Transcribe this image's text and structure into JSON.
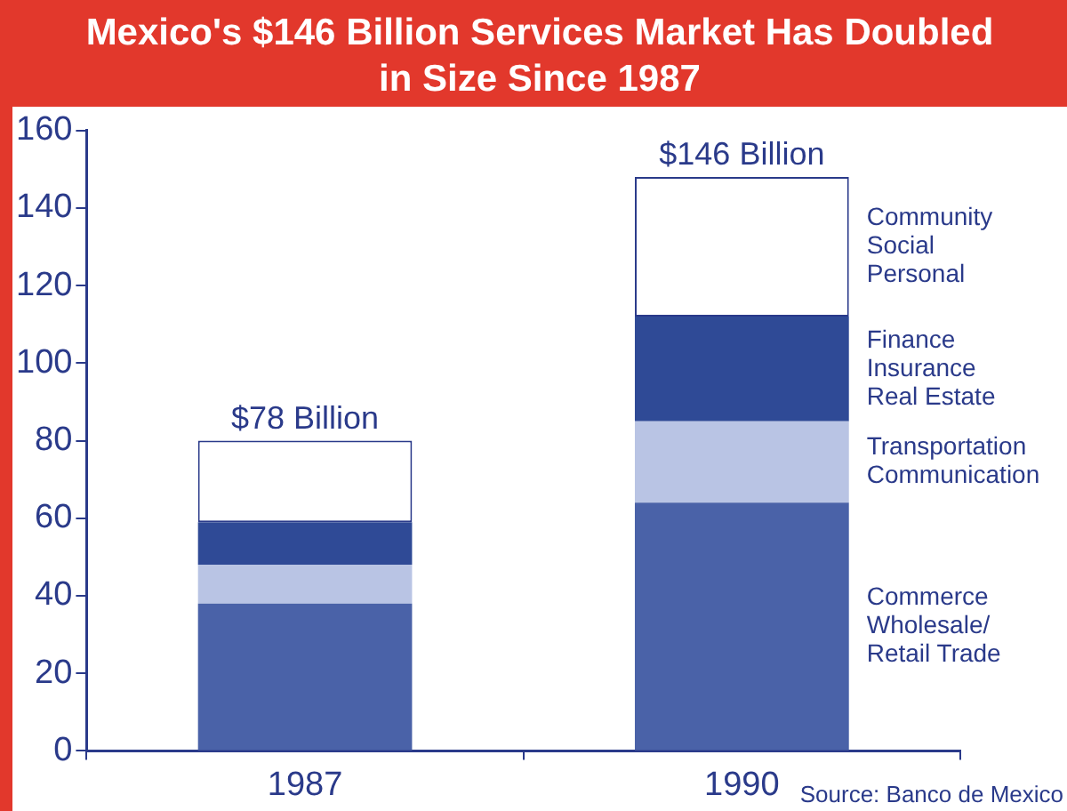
{
  "chart_data": {
    "type": "bar",
    "title": "Mexico's $146 Billion Services Market Has Doubled in Size Since 1987",
    "categories": [
      "1987",
      "1990"
    ],
    "stacked": true,
    "series": [
      {
        "name": "Commerce\nWholesale/\nRetail Trade",
        "color": "#4a62a8",
        "values": [
          38,
          64
        ]
      },
      {
        "name": "Transportation\nCommunication",
        "color": "#b9c4e4",
        "values": [
          10,
          21
        ]
      },
      {
        "name": "Finance\nInsurance\nReal Estate",
        "color": "#2f4a96",
        "values": [
          11,
          27
        ]
      },
      {
        "name": "Community\nSocial\nPersonal",
        "color": "#ffffff",
        "values": [
          21,
          36
        ]
      }
    ],
    "totals": [
      "$78 Billion",
      "$146 Billion"
    ],
    "ylim": [
      0,
      160
    ],
    "yticks": [
      0,
      20,
      40,
      60,
      80,
      100,
      120,
      140,
      160
    ],
    "grid": false,
    "legend": "right",
    "annotations": [
      "Source: Banco de Mexico"
    ]
  }
}
